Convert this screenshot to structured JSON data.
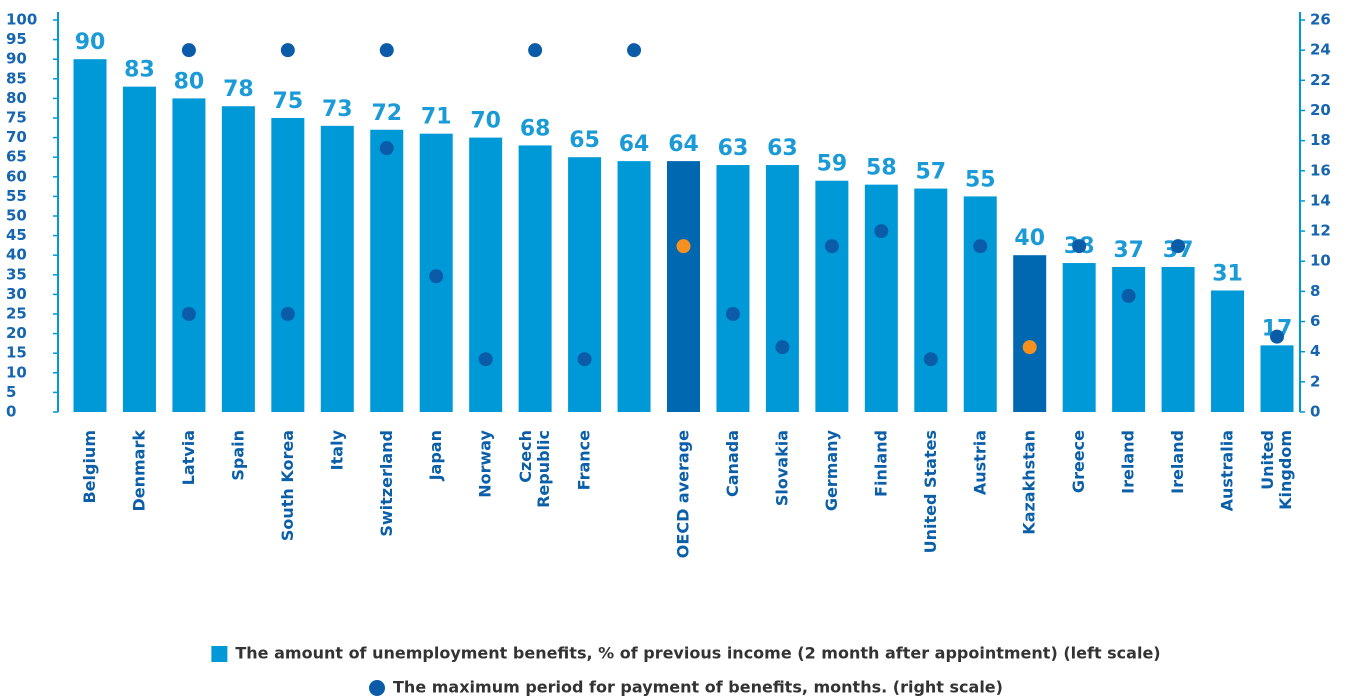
{
  "chart_data": {
    "type": "bar",
    "categories": [
      "Belgium",
      "Denmark",
      "Latvia",
      "Spain",
      "South Korea",
      "Italy",
      "Switzerland",
      "Japan",
      "Norway",
      "Czech\nRepublic",
      "France",
      null,
      "OECD average",
      "Canada",
      "Slovakia",
      "Germany",
      "Finland",
      "United States",
      "Austria",
      "Kazakhstan",
      "Greece",
      "Ireland",
      "Ireland",
      "Australia",
      "United\nKingdom"
    ],
    "series": [
      {
        "name": "The amount of unemployment benefits, % of previous income (2 month after appointment) (left scale)",
        "type": "bar",
        "color": "#0099d8",
        "colors": [
          "#0099d8",
          "#0099d8",
          "#0099d8",
          "#0099d8",
          "#0099d8",
          "#0099d8",
          "#0099d8",
          "#0099d8",
          "#0099d8",
          "#0099d8",
          "#0099d8",
          "#0099d8",
          "#0068b0",
          "#0099d8",
          "#0099d8",
          "#0099d8",
          "#0099d8",
          "#0099d8",
          "#0099d8",
          "#0068b0",
          "#0099d8",
          "#0099d8",
          "#0099d8",
          "#0099d8",
          "#0099d8"
        ],
        "values": [
          90,
          83,
          80,
          78,
          75,
          73,
          72,
          71,
          70,
          68,
          65,
          64,
          64,
          63,
          63,
          59,
          58,
          57,
          55,
          40,
          38,
          37,
          37,
          31,
          17
        ]
      },
      {
        "name": "The maximum period for payment of benefits, months. (right scale)",
        "type": "scatter",
        "axis": "y2",
        "color": "#0a5ca8",
        "colors": [
          "#0a5ca8",
          "#0a5ca8",
          "#0a5ca8",
          "#0a5ca8",
          "#0a5ca8",
          "#0a5ca8",
          "#0a5ca8",
          "#0a5ca8",
          "#0a5ca8",
          "#0a5ca8",
          "#0a5ca8",
          "#0a5ca8",
          "#f7901e",
          "#0a5ca8",
          "#0a5ca8",
          "#0a5ca8",
          "#0a5ca8",
          "#0a5ca8",
          "#0a5ca8",
          "#f7901e",
          "#0a5ca8",
          "#0a5ca8",
          "#0a5ca8",
          "#0a5ca8",
          "#0a5ca8"
        ],
        "values": [
          null,
          null,
          6.5,
          null,
          6.5,
          null,
          17.5,
          9,
          3.5,
          null,
          3.5,
          null,
          11,
          6.5,
          4.3,
          11,
          12,
          3.5,
          11,
          4.3,
          11,
          7.7,
          11,
          null,
          5
        ]
      },
      {
        "type": "scatter",
        "axis": "y2",
        "color": "#0a5ca8",
        "values": [
          null,
          null,
          24,
          null,
          24,
          null,
          24,
          null,
          null,
          24,
          null,
          24,
          null,
          null,
          null,
          null,
          null,
          null,
          null,
          null,
          null,
          null,
          null,
          null,
          null
        ]
      }
    ],
    "ylim": [
      0,
      100
    ],
    "yticks": [
      0,
      5,
      10,
      15,
      20,
      25,
      30,
      35,
      40,
      45,
      50,
      55,
      60,
      65,
      70,
      75,
      80,
      85,
      90,
      95,
      100
    ],
    "y2lim": [
      0,
      26
    ],
    "y2ticks": [
      0,
      2,
      4,
      6,
      8,
      10,
      12,
      14,
      16,
      18,
      20,
      22,
      24,
      26
    ]
  }
}
